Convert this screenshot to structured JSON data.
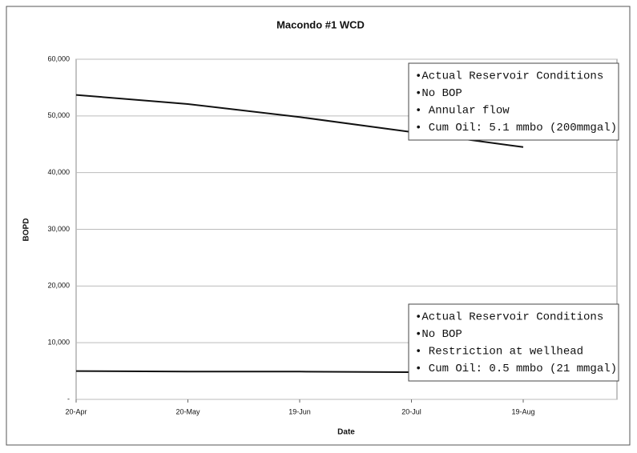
{
  "chart_data": {
    "type": "line",
    "title": "Macondo #1 WCD",
    "x_label": "Date",
    "y_label": "BOPD",
    "categories": [
      "20-Apr",
      "20-May",
      "19-Jun",
      "20-Jul",
      "19-Aug"
    ],
    "series": [
      {
        "color": "#111111",
        "values": [
          53700,
          52100,
          49800,
          47150,
          44500
        ]
      },
      {
        "color": "#111111",
        "values": [
          5000,
          4900,
          4900,
          4800,
          4800
        ]
      }
    ],
    "ylim": [
      0,
      60000
    ],
    "yticks": [
      {
        "value": 0,
        "label": "-"
      },
      {
        "value": 10000,
        "label": "10,000"
      },
      {
        "value": 20000,
        "label": "20,000"
      },
      {
        "value": 30000,
        "label": "30,000"
      },
      {
        "value": 40000,
        "label": "40,000"
      },
      {
        "value": 50000,
        "label": "50,000"
      },
      {
        "value": 60000,
        "label": "60,000"
      }
    ],
    "grid": true,
    "annotations": [
      [
        "•Actual Reservoir Conditions",
        "•No BOP",
        "• Annular flow",
        "• Cum Oil: 5.1 mmbo (200mmgal)"
      ],
      [
        "•Actual Reservoir Conditions",
        "•No BOP",
        "• Restriction at wellhead",
        "• Cum Oil: 0.5 mmbo (21 mmgal)"
      ]
    ]
  }
}
